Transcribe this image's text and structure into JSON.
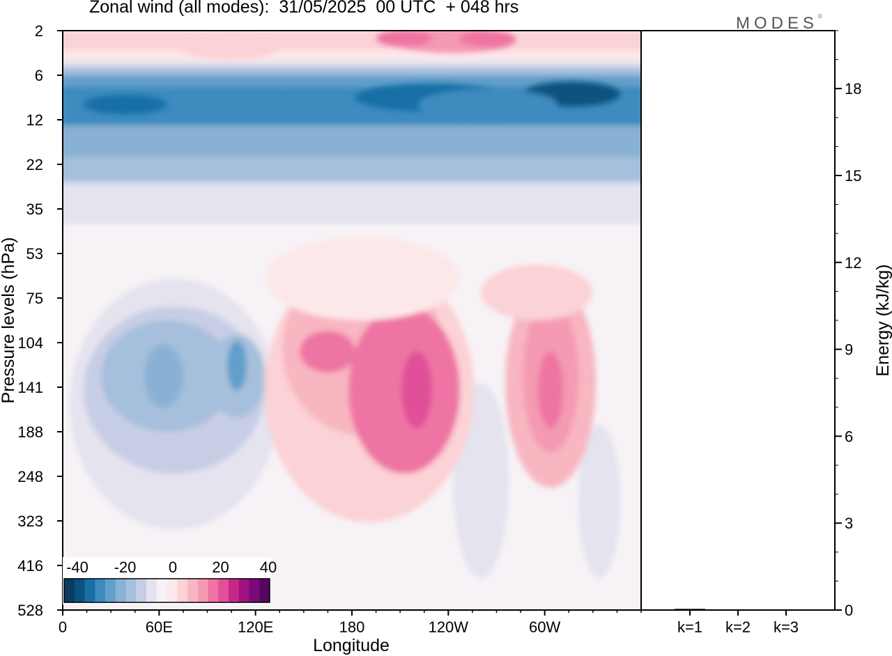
{
  "title": "Zonal wind (all modes):  31/05/2025  00 UTC  + 048 hrs",
  "logo": "MODES",
  "logo_mark": "©",
  "chart_data": [
    {
      "type": "heatmap",
      "title": "Zonal wind (all modes):  31/05/2025  00 UTC  + 048 hrs",
      "xlabel": "Longitude",
      "ylabel": "Pressure levels (hPa)",
      "x_ticks": [
        "0",
        "60E",
        "120E",
        "180",
        "120W",
        "60W"
      ],
      "y_ticks": [
        "2",
        "6",
        "12",
        "22",
        "35",
        "53",
        "75",
        "104",
        "141",
        "188",
        "248",
        "323",
        "416",
        "528"
      ],
      "colorbar": {
        "ticks": [
          "-40",
          "-20",
          "0",
          "20",
          "40"
        ],
        "colors": [
          "#0b3b60",
          "#0a527f",
          "#176fa6",
          "#3c8bbf",
          "#629fcb",
          "#88b1d4",
          "#a6bfdc",
          "#c7cde5",
          "#e4e3ee",
          "#f7f2f6",
          "#fde8e9",
          "#fbd2d5",
          "#f8b6c0",
          "#f49ab2",
          "#ee74a3",
          "#e14f99",
          "#c5288a",
          "#a0137f",
          "#7a0a78",
          "#55065f"
        ]
      },
      "features": [
        {
          "lon": 90,
          "level": 9,
          "value": -32
        },
        {
          "lon": 300,
          "level": 9,
          "value": -40
        },
        {
          "lon": 65,
          "level": 141,
          "value": -22
        },
        {
          "lon": 110,
          "level": 141,
          "value": -20
        },
        {
          "lon": 160,
          "level": 104,
          "value": 20
        },
        {
          "lon": 225,
          "level": 141,
          "value": 26
        },
        {
          "lon": 288,
          "level": 141,
          "value": 18
        },
        {
          "lon": 210,
          "level": 2,
          "value": 15
        }
      ]
    },
    {
      "type": "bar",
      "categories": [
        "k=1",
        "k=2",
        "k=3"
      ],
      "values": [
        0.04,
        0.02,
        0.02
      ],
      "ylabel": "Energy (kJ/kg)",
      "y_ticks": [
        "0",
        "3",
        "6",
        "9",
        "12",
        "15",
        "18"
      ],
      "ylim": [
        0,
        20
      ]
    }
  ]
}
